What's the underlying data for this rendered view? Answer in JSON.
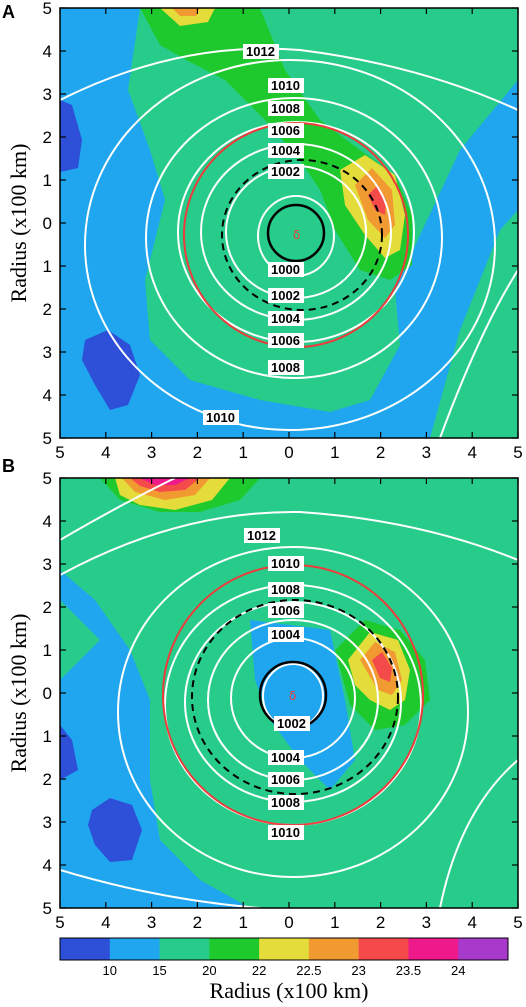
{
  "chart_data": [
    {
      "panel": "A",
      "type": "heatmap",
      "ylabel": "Radius (x100 km)",
      "x_ticks": [
        "5",
        "4",
        "3",
        "2",
        "1",
        "0",
        "1",
        "2",
        "3",
        "4",
        "5"
      ],
      "y_ticks": [
        "5",
        "4",
        "3",
        "2",
        "1",
        "0",
        "1",
        "2",
        "3",
        "4",
        "5"
      ],
      "xlim": [
        -5,
        5
      ],
      "ylim": [
        -5,
        5
      ],
      "contour_labels_top": [
        "1012",
        "1010",
        "1008",
        "1006",
        "1004",
        "1002"
      ],
      "contour_labels_bottom": [
        "1000",
        "1002",
        "1004",
        "1006",
        "1008",
        "1010"
      ],
      "center_marker": "δ"
    },
    {
      "panel": "B",
      "type": "heatmap",
      "ylabel": "Radius (x100 km)",
      "x_ticks": [
        "5",
        "4",
        "3",
        "2",
        "1",
        "0",
        "1",
        "2",
        "3",
        "4",
        "5"
      ],
      "y_ticks": [
        "5",
        "4",
        "3",
        "2",
        "1",
        "0",
        "1",
        "2",
        "3",
        "4",
        "5"
      ],
      "xlim": [
        -5,
        5
      ],
      "ylim": [
        -5,
        5
      ],
      "contour_labels_top": [
        "1012",
        "1010",
        "1008",
        "1006",
        "1004"
      ],
      "contour_labels_bottom": [
        "1002",
        "1004",
        "1006",
        "1008",
        "1010"
      ],
      "center_marker": "δ"
    }
  ],
  "colorbar": {
    "xlabel": "Radius (x100 km)",
    "tick_labels": [
      "10",
      "15",
      "20",
      "22",
      "22.5",
      "23",
      "23.5",
      "24"
    ],
    "colors": [
      "#2e4fd8",
      "#1fa6ee",
      "#28cc8a",
      "#1ec92e",
      "#e3dc3b",
      "#f29a32",
      "#f54a4a",
      "#ee1a8c",
      "#a83acb"
    ]
  }
}
